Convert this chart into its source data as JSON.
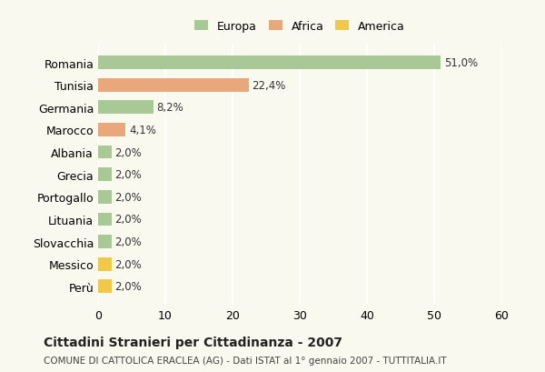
{
  "categories": [
    "Romania",
    "Tunisia",
    "Germania",
    "Marocco",
    "Albania",
    "Grecia",
    "Portogallo",
    "Lituania",
    "Slovacchia",
    "Messico",
    "Perù"
  ],
  "values": [
    51.0,
    22.4,
    8.2,
    4.1,
    2.0,
    2.0,
    2.0,
    2.0,
    2.0,
    2.0,
    2.0
  ],
  "labels": [
    "51,0%",
    "22,4%",
    "8,2%",
    "4,1%",
    "2,0%",
    "2,0%",
    "2,0%",
    "2,0%",
    "2,0%",
    "2,0%",
    "2,0%"
  ],
  "continents": [
    "Europa",
    "Africa",
    "Europa",
    "Africa",
    "Europa",
    "Europa",
    "Europa",
    "Europa",
    "Europa",
    "America",
    "America"
  ],
  "colors": {
    "Europa": "#a8c896",
    "Africa": "#e8a87c",
    "America": "#f0c84a"
  },
  "legend_labels": [
    "Europa",
    "Africa",
    "America"
  ],
  "xlim": [
    0,
    60
  ],
  "xticks": [
    0,
    10,
    20,
    30,
    40,
    50,
    60
  ],
  "title": "Cittadini Stranieri per Cittadinanza - 2007",
  "subtitle": "COMUNE DI CATTOLICA ERACLEA (AG) - Dati ISTAT al 1° gennaio 2007 - TUTTITALIA.IT",
  "background_color": "#f9f9f0",
  "grid_color": "#ffffff",
  "bar_edge_color": "none"
}
